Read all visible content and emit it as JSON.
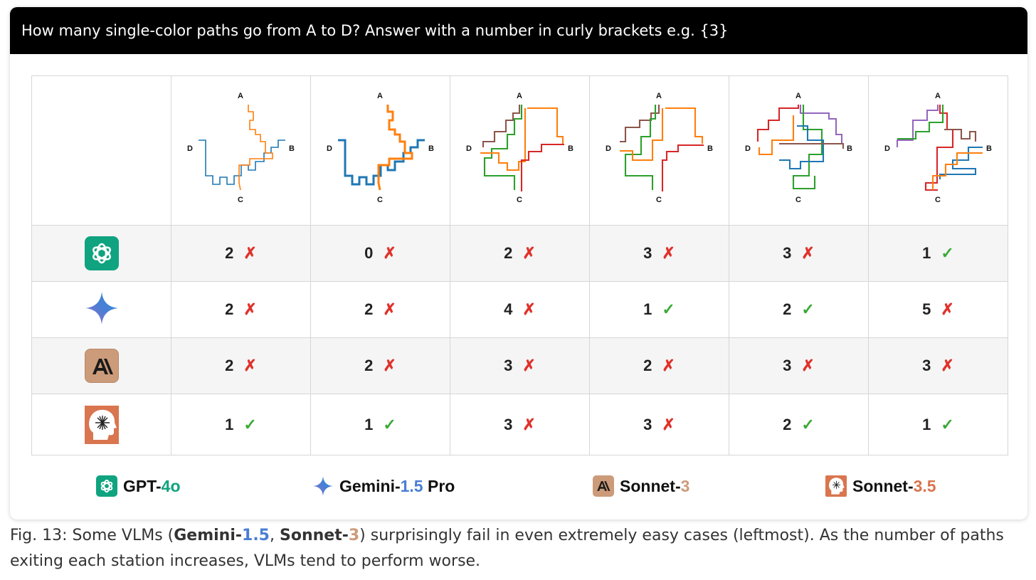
{
  "question": "How many single-color paths go from A to D? Answer with a number in curly brackets e.g. {3}",
  "station_labels": {
    "a": "A",
    "b": "B",
    "c": "C",
    "d": "D"
  },
  "colors": {
    "gpt": "#10a37f",
    "gemini": "#4a7ed4",
    "sonnet3": "#cc9b7a",
    "sonnet35": "#d9754f",
    "wrong": "#e0322b",
    "right": "#3aaa35",
    "path_blue": "#1f77b4",
    "path_orange": "#ff7f0e",
    "path_green": "#2ca02c",
    "path_red": "#d62728",
    "path_brown": "#8c564b",
    "path_purple": "#9467bd"
  },
  "rows": [
    {
      "model": "GPT-4o",
      "icon": "openai-icon",
      "cells": [
        {
          "value": "2",
          "mark": "✗",
          "correct": false
        },
        {
          "value": "0",
          "mark": "✗",
          "correct": false
        },
        {
          "value": "2",
          "mark": "✗",
          "correct": false
        },
        {
          "value": "3",
          "mark": "✗",
          "correct": false
        },
        {
          "value": "3",
          "mark": "✗",
          "correct": false
        },
        {
          "value": "1",
          "mark": "✓",
          "correct": true
        }
      ]
    },
    {
      "model": "Gemini-1.5 Pro",
      "icon": "gemini-sparkle-icon",
      "cells": [
        {
          "value": "2",
          "mark": "✗",
          "correct": false
        },
        {
          "value": "2",
          "mark": "✗",
          "correct": false
        },
        {
          "value": "4",
          "mark": "✗",
          "correct": false
        },
        {
          "value": "1",
          "mark": "✓",
          "correct": true
        },
        {
          "value": "2",
          "mark": "✓",
          "correct": true
        },
        {
          "value": "5",
          "mark": "✗",
          "correct": false
        }
      ]
    },
    {
      "model": "Sonnet-3",
      "icon": "anthropic-icon",
      "cells": [
        {
          "value": "2",
          "mark": "✗",
          "correct": false
        },
        {
          "value": "2",
          "mark": "✗",
          "correct": false
        },
        {
          "value": "3",
          "mark": "✗",
          "correct": false
        },
        {
          "value": "2",
          "mark": "✗",
          "correct": false
        },
        {
          "value": "3",
          "mark": "✗",
          "correct": false
        },
        {
          "value": "3",
          "mark": "✗",
          "correct": false
        }
      ]
    },
    {
      "model": "Sonnet-3.5",
      "icon": "claude-head-icon",
      "cells": [
        {
          "value": "1",
          "mark": "✓",
          "correct": true
        },
        {
          "value": "1",
          "mark": "✓",
          "correct": true
        },
        {
          "value": "3",
          "mark": "✗",
          "correct": false
        },
        {
          "value": "3",
          "mark": "✗",
          "correct": false
        },
        {
          "value": "2",
          "mark": "✓",
          "correct": true
        },
        {
          "value": "1",
          "mark": "✓",
          "correct": true
        }
      ]
    }
  ],
  "legend": {
    "gpt": {
      "base": "GPT-",
      "version": "4o"
    },
    "gemini": {
      "base": "Gemini-",
      "version": "1.5",
      "suffix": " Pro"
    },
    "sonnet3": {
      "base": "Sonnet-",
      "version": "3"
    },
    "sonnet35": {
      "base": "Sonnet-",
      "version": "3.5"
    }
  },
  "caption": {
    "prefix": "Fig. 13: Some VLMs (",
    "gemini_base": "Gemini-",
    "gemini_version": "1.5",
    "sep": ", ",
    "sonnet_base": "Sonnet-",
    "sonnet_version": "3",
    "suffix": ") surprisingly fail in even extremely easy cases (leftmost). As the number of paths exiting each station increases, VLMs tend to perform worse."
  }
}
